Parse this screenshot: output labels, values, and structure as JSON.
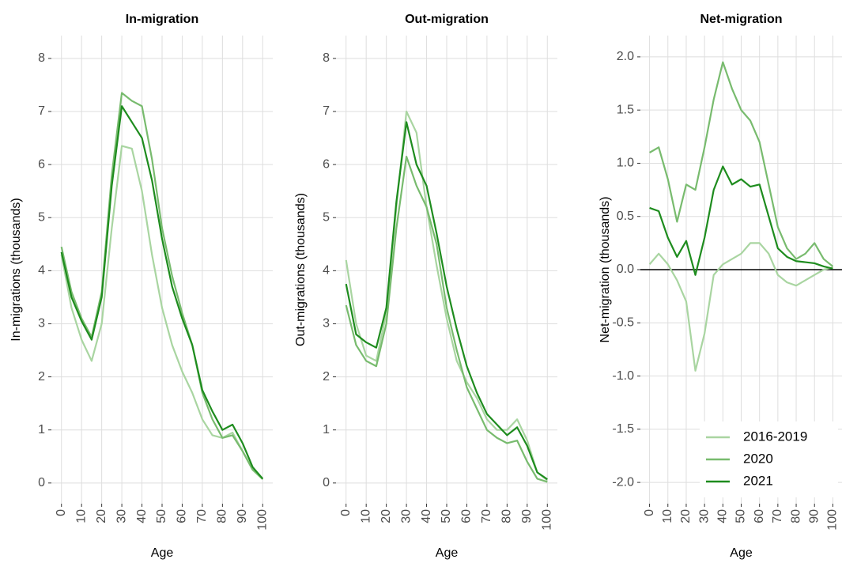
{
  "chart_data": [
    {
      "type": "line",
      "title": "In-migration",
      "x_label": "Age",
      "y_label": "In-migrations (thousands)",
      "x": [
        0,
        5,
        10,
        15,
        20,
        25,
        30,
        35,
        40,
        45,
        50,
        55,
        60,
        65,
        70,
        75,
        80,
        85,
        90,
        95,
        100
      ],
      "series": [
        {
          "color": "#a9d5a1",
          "values": [
            4.3,
            3.3,
            2.7,
            2.3,
            3.0,
            4.8,
            6.35,
            6.3,
            5.5,
            4.3,
            3.3,
            2.6,
            2.1,
            1.7,
            1.2,
            0.9,
            0.85,
            0.95,
            0.6,
            0.25,
            0.08
          ]
        },
        {
          "color": "#78bb6e",
          "values": [
            4.45,
            3.6,
            3.1,
            2.75,
            3.6,
            5.8,
            7.35,
            7.2,
            7.1,
            6.1,
            4.8,
            3.9,
            3.2,
            2.6,
            1.7,
            1.2,
            0.85,
            0.9,
            0.6,
            0.25,
            0.07
          ]
        },
        {
          "color": "#1e8c1e",
          "values": [
            4.35,
            3.5,
            3.05,
            2.7,
            3.5,
            5.6,
            7.1,
            6.8,
            6.5,
            5.7,
            4.6,
            3.7,
            3.1,
            2.6,
            1.75,
            1.35,
            1.0,
            1.1,
            0.75,
            0.3,
            0.08
          ]
        }
      ],
      "xlim": [
        -5,
        105
      ],
      "ylim": [
        -0.39,
        8.43
      ],
      "xticks": [
        0,
        10,
        20,
        30,
        40,
        50,
        60,
        70,
        80,
        90,
        100
      ],
      "yticks": [
        0,
        1,
        2,
        3,
        4,
        5,
        6,
        7,
        8
      ],
      "grid": true
    },
    {
      "type": "line",
      "title": "Out-migration",
      "x_label": "Age",
      "y_label": "Out-migrations (thousands)",
      "x": [
        0,
        5,
        10,
        15,
        20,
        25,
        30,
        35,
        40,
        45,
        50,
        55,
        60,
        65,
        70,
        75,
        80,
        85,
        90,
        95,
        100
      ],
      "series": [
        {
          "color": "#a9d5a1",
          "values": [
            4.2,
            3.0,
            2.4,
            2.3,
            3.2,
            5.2,
            7.0,
            6.6,
            5.2,
            4.1,
            3.1,
            2.3,
            1.9,
            1.6,
            1.2,
            1.0,
            1.0,
            1.2,
            0.8,
            0.2,
            0.05
          ]
        },
        {
          "color": "#78bb6e",
          "values": [
            3.35,
            2.6,
            2.3,
            2.2,
            3.0,
            4.8,
            6.15,
            5.6,
            5.2,
            4.5,
            3.3,
            2.5,
            1.8,
            1.4,
            1.0,
            0.85,
            0.75,
            0.8,
            0.4,
            0.08,
            0.02
          ]
        },
        {
          "color": "#1e8c1e",
          "values": [
            3.75,
            2.8,
            2.65,
            2.55,
            3.3,
            5.3,
            6.8,
            6.0,
            5.6,
            4.7,
            3.7,
            2.9,
            2.2,
            1.7,
            1.3,
            1.1,
            0.9,
            1.05,
            0.7,
            0.2,
            0.07
          ]
        }
      ],
      "xlim": [
        -5,
        105
      ],
      "ylim": [
        -0.39,
        8.43
      ],
      "xticks": [
        0,
        10,
        20,
        30,
        40,
        50,
        60,
        70,
        80,
        90,
        100
      ],
      "yticks": [
        0,
        1,
        2,
        3,
        4,
        5,
        6,
        7,
        8
      ],
      "grid": true
    },
    {
      "type": "line",
      "title": "Net-migration",
      "x_label": "Age",
      "y_label": "Net-migration (thousands)",
      "x": [
        0,
        5,
        10,
        15,
        20,
        25,
        30,
        35,
        40,
        45,
        50,
        55,
        60,
        65,
        70,
        75,
        80,
        85,
        90,
        95,
        100
      ],
      "series": [
        {
          "name": "2016-2019",
          "color": "#a9d5a1",
          "values": [
            0.05,
            0.15,
            0.05,
            -0.1,
            -0.3,
            -0.95,
            -0.6,
            -0.05,
            0.05,
            0.1,
            0.15,
            0.25,
            0.25,
            0.15,
            -0.05,
            -0.12,
            -0.15,
            -0.1,
            -0.05,
            0.0,
            0.02
          ]
        },
        {
          "name": "2020",
          "color": "#78bb6e",
          "values": [
            1.1,
            1.15,
            0.85,
            0.45,
            0.8,
            0.75,
            1.15,
            1.6,
            1.95,
            1.7,
            1.5,
            1.4,
            1.2,
            0.8,
            0.4,
            0.2,
            0.1,
            0.15,
            0.25,
            0.1,
            0.03
          ]
        },
        {
          "name": "2021",
          "color": "#1e8c1e",
          "values": [
            0.58,
            0.55,
            0.3,
            0.12,
            0.27,
            -0.05,
            0.3,
            0.75,
            0.97,
            0.8,
            0.85,
            0.78,
            0.8,
            0.5,
            0.2,
            0.12,
            0.08,
            0.07,
            0.06,
            0.03,
            0.01
          ]
        }
      ],
      "xlim": [
        -5,
        105
      ],
      "ylim": [
        -2.2,
        2.2
      ],
      "xticks": [
        0,
        10,
        20,
        30,
        40,
        50,
        60,
        70,
        80,
        90,
        100
      ],
      "yticks": [
        {
          "value": -2,
          "label": "-2.0"
        },
        -1.5,
        {
          "value": -1,
          "label": "-1.0"
        },
        -0.5,
        {
          "value": 0,
          "label": "0.0"
        },
        0.5,
        {
          "value": 1,
          "label": "1.0"
        },
        1.5,
        {
          "value": 2,
          "label": "2.0"
        }
      ],
      "hline": 0,
      "grid": true,
      "legend": "bottom-right"
    }
  ]
}
